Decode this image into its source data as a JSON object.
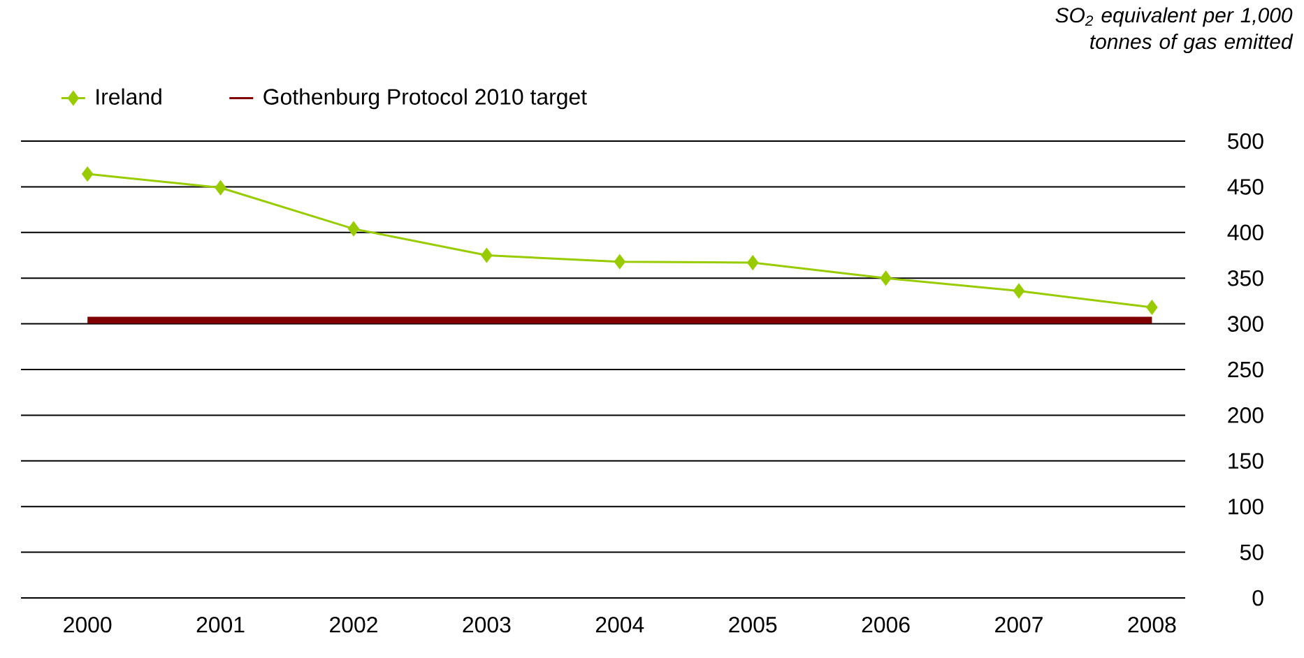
{
  "chart_data": {
    "type": "line",
    "ylabel": "SO$_{2}$ equivalent per 1,000 tonnes of gas emitted",
    "categories": [
      "2000",
      "2001",
      "2002",
      "2003",
      "2004",
      "2005",
      "2006",
      "2007",
      "2008"
    ],
    "series": [
      {
        "name": "Ireland",
        "color": "#99cc00",
        "marker": "diamond",
        "values": [
          464,
          449,
          404,
          375,
          368,
          367,
          350,
          336,
          318
        ]
      },
      {
        "name": "Gothenburg Protocol 2010 target",
        "color": "#800000",
        "marker": "none",
        "values": [
          304,
          304,
          304,
          304,
          304,
          304,
          304,
          304,
          304
        ]
      }
    ],
    "ylim": [
      0,
      500
    ],
    "yticks": [
      0,
      50,
      100,
      150,
      200,
      250,
      300,
      350,
      400,
      450,
      500
    ],
    "grid": "y",
    "legend": "top left",
    "line_style": "solid"
  }
}
